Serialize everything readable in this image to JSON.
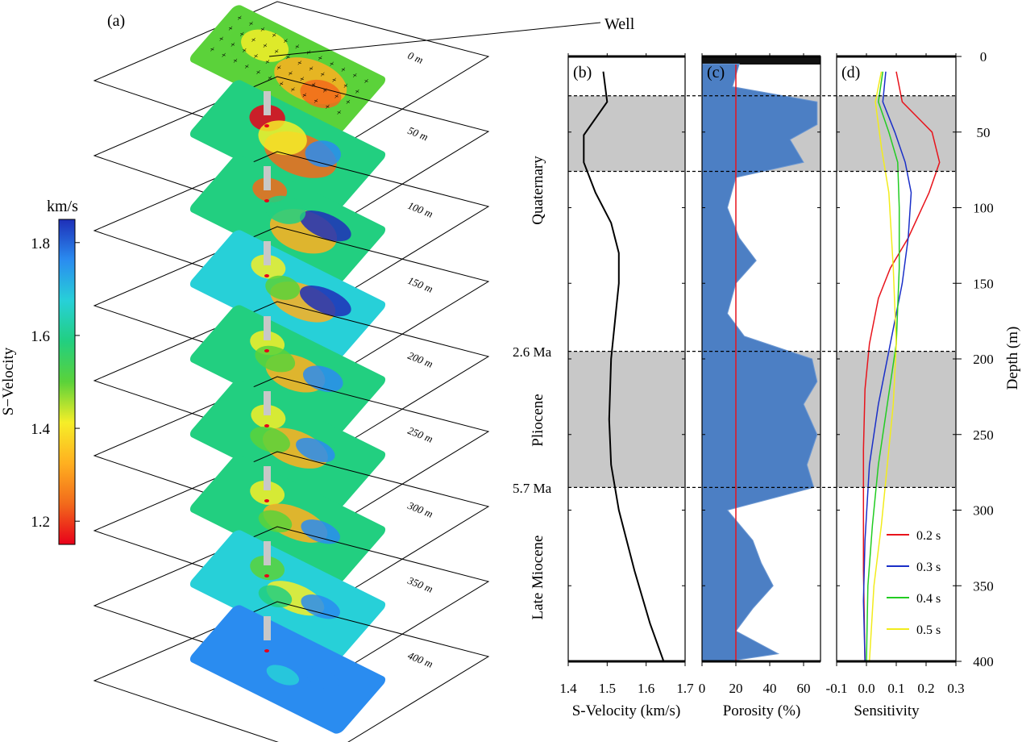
{
  "panel_labels": {
    "a": "(a)",
    "b": "(b)",
    "c": "(c)",
    "d": "(d)"
  },
  "well_label": "Well",
  "colorbar": {
    "unit": "km/s",
    "label": "S−Velocity",
    "min": 1.15,
    "max": 1.85,
    "ticks": [
      "1.2",
      "1.4",
      "1.6",
      "1.8"
    ],
    "tick_values": [
      1.2,
      1.4,
      1.6,
      1.8
    ],
    "colors": [
      "#e8001a",
      "#f26a1b",
      "#ffb020",
      "#f6ee28",
      "#5bd23a",
      "#22cf80",
      "#27d0d8",
      "#2a8cf0",
      "#1e2fb8"
    ]
  },
  "slices": [
    {
      "depth": 0,
      "label": "0 m"
    },
    {
      "depth": 50,
      "label": "50 m"
    },
    {
      "depth": 100,
      "label": "100 m"
    },
    {
      "depth": 150,
      "label": "150 m"
    },
    {
      "depth": 200,
      "label": "200 m"
    },
    {
      "depth": 250,
      "label": "250 m"
    },
    {
      "depth": 300,
      "label": "300 m"
    },
    {
      "depth": 350,
      "label": "350 m"
    },
    {
      "depth": 400,
      "label": "400 m"
    }
  ],
  "eras": [
    {
      "label": "Quaternary"
    },
    {
      "label": "Pliocene"
    },
    {
      "label": "Late Miocene"
    }
  ],
  "boundaries": [
    {
      "label": "2.6 Ma",
      "depth": 195
    },
    {
      "label": "5.7 Ma",
      "depth": 285
    }
  ],
  "shaded_zones": [
    [
      26,
      76
    ],
    [
      195,
      285
    ]
  ],
  "depth_axis": {
    "label": "Depth (m)",
    "range": [
      0,
      400
    ],
    "ticks": [
      "0",
      "50",
      "100",
      "150",
      "200",
      "250",
      "300",
      "350",
      "400"
    ]
  },
  "chart_data": [
    {
      "type": "line",
      "panel": "(b)",
      "xlabel": "S-Velocity (km/s)",
      "xlim": [
        1.4,
        1.7
      ],
      "xticks": [
        "1.4",
        "1.5",
        "1.6",
        "1.7"
      ],
      "series": [
        {
          "points": [
            [
              1.49,
              10
            ],
            [
              1.5,
              30
            ],
            [
              1.44,
              52
            ],
            [
              1.44,
              70
            ],
            [
              1.47,
              90
            ],
            [
              1.51,
              110
            ],
            [
              1.53,
              130
            ],
            [
              1.53,
              150
            ],
            [
              1.52,
              175
            ],
            [
              1.51,
              200
            ],
            [
              1.505,
              240
            ],
            [
              1.51,
              270
            ],
            [
              1.53,
              300
            ],
            [
              1.57,
              340
            ],
            [
              1.61,
              375
            ],
            [
              1.645,
              400
            ]
          ]
        }
      ]
    },
    {
      "type": "area",
      "panel": "(c)",
      "xlabel": "Porosity (%)",
      "xlim": [
        0,
        70
      ],
      "xticks": [
        "0",
        "20",
        "40",
        "60"
      ],
      "mean_line_x": 20,
      "series": [
        {
          "points": [
            [
              22,
              5
            ],
            [
              18,
              20
            ],
            [
              68,
              30
            ],
            [
              68,
              45
            ],
            [
              52,
              55
            ],
            [
              60,
              70
            ],
            [
              20,
              80
            ],
            [
              15,
              100
            ],
            [
              22,
              120
            ],
            [
              32,
              135
            ],
            [
              20,
              150
            ],
            [
              15,
              170
            ],
            [
              25,
              185
            ],
            [
              65,
              200
            ],
            [
              68,
              215
            ],
            [
              60,
              230
            ],
            [
              68,
              250
            ],
            [
              62,
              270
            ],
            [
              66,
              285
            ],
            [
              15,
              300
            ],
            [
              30,
              320
            ],
            [
              35,
              335
            ],
            [
              42,
              350
            ],
            [
              30,
              365
            ],
            [
              20,
              380
            ],
            [
              45,
              395
            ],
            [
              15,
              400
            ]
          ]
        }
      ]
    },
    {
      "type": "line",
      "panel": "(d)",
      "xlabel": "Sensitivity",
      "xlim": [
        -0.1,
        0.3
      ],
      "xticks": [
        "-0.1",
        "0.0",
        "0.1",
        "0.2",
        "0.3"
      ],
      "legend_position": "bottom-right",
      "series": [
        {
          "name": "0.2 s",
          "color": "#e8141c",
          "points": [
            [
              0.1,
              10
            ],
            [
              0.12,
              30
            ],
            [
              0.22,
              50
            ],
            [
              0.245,
              70
            ],
            [
              0.21,
              90
            ],
            [
              0.14,
              120
            ],
            [
              0.08,
              140
            ],
            [
              0.04,
              160
            ],
            [
              0.01,
              190
            ],
            [
              -0.005,
              220
            ],
            [
              -0.01,
              260
            ],
            [
              -0.01,
              300
            ],
            [
              -0.01,
              340
            ],
            [
              -0.005,
              400
            ]
          ]
        },
        {
          "name": "0.3 s",
          "color": "#1a2fc8",
          "points": [
            [
              0.065,
              10
            ],
            [
              0.055,
              30
            ],
            [
              0.095,
              50
            ],
            [
              0.13,
              70
            ],
            [
              0.15,
              90
            ],
            [
              0.14,
              120
            ],
            [
              0.12,
              150
            ],
            [
              0.08,
              190
            ],
            [
              0.04,
              230
            ],
            [
              0.01,
              270
            ],
            [
              -0.005,
              320
            ],
            [
              -0.01,
              360
            ],
            [
              -0.005,
              400
            ]
          ]
        },
        {
          "name": "0.4 s",
          "color": "#22cc22",
          "points": [
            [
              0.055,
              10
            ],
            [
              0.04,
              30
            ],
            [
              0.075,
              50
            ],
            [
              0.105,
              70
            ],
            [
              0.11,
              100
            ],
            [
              0.11,
              140
            ],
            [
              0.1,
              190
            ],
            [
              0.07,
              230
            ],
            [
              0.04,
              270
            ],
            [
              0.02,
              310
            ],
            [
              0.005,
              350
            ],
            [
              0.0,
              400
            ]
          ]
        },
        {
          "name": "0.5 s",
          "color": "#f2ec1c",
          "points": [
            [
              0.05,
              10
            ],
            [
              0.03,
              30
            ],
            [
              0.05,
              60
            ],
            [
              0.075,
              90
            ],
            [
              0.09,
              140
            ],
            [
              0.1,
              190
            ],
            [
              0.09,
              230
            ],
            [
              0.07,
              270
            ],
            [
              0.05,
              310
            ],
            [
              0.025,
              350
            ],
            [
              0.01,
              400
            ]
          ]
        }
      ]
    }
  ]
}
